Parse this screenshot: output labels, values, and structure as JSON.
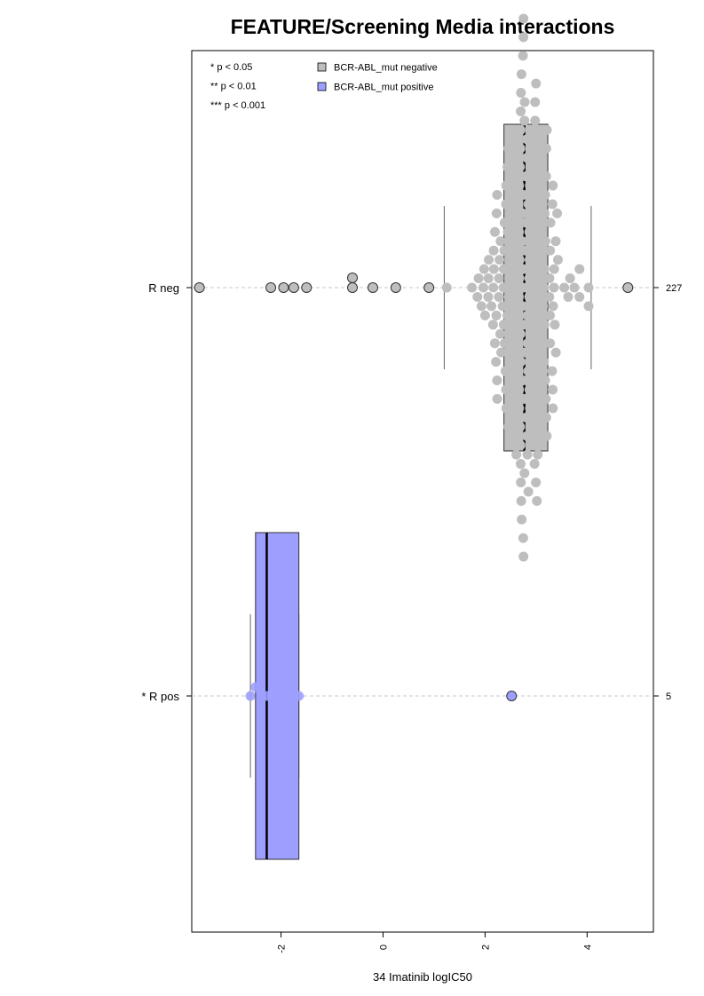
{
  "chart_data": {
    "type": "box",
    "title": "FEATURE/Screening Media interactions",
    "xlabel": "34 Imatinib logIC50",
    "ylabel": "",
    "xlim": [
      -3.75,
      5.3
    ],
    "xticks": [
      -2,
      0,
      2,
      4
    ],
    "xtick_labels": [
      "-2",
      "0",
      "2",
      "4"
    ],
    "orientation": "horizontal",
    "grid": false,
    "significance_legend": [
      "* p < 0.05",
      "** p < 0.01",
      "*** p < 0.001"
    ],
    "legend": {
      "position": "top-left",
      "entries": [
        {
          "label": "BCR-ABL_mut negative",
          "color": "#bebebe"
        },
        {
          "label": "BCR-ABL_mut positive",
          "color": "#9e9eff"
        }
      ]
    },
    "groups": [
      {
        "label": "R neg",
        "count_label": "227",
        "color": "#bebebe",
        "whisker_low": 1.2,
        "q1": 2.37,
        "median": 2.77,
        "q3": 3.23,
        "whisker_high": 4.08,
        "outliers": [
          -3.6,
          -2.2,
          -1.95,
          -1.75,
          -1.5,
          -0.6,
          -0.6,
          -0.2,
          0.25,
          0.9,
          4.8
        ],
        "strip_points": 216
      },
      {
        "label": "* R pos",
        "count_label": "5",
        "color": "#9e9eff",
        "whisker_low": -2.6,
        "q1": -2.5,
        "median": -2.28,
        "q3": -1.65,
        "whisker_high": -1.65,
        "outliers": [
          2.52
        ],
        "points": [
          -2.6,
          -2.5,
          -2.28,
          -1.65
        ]
      }
    ]
  }
}
